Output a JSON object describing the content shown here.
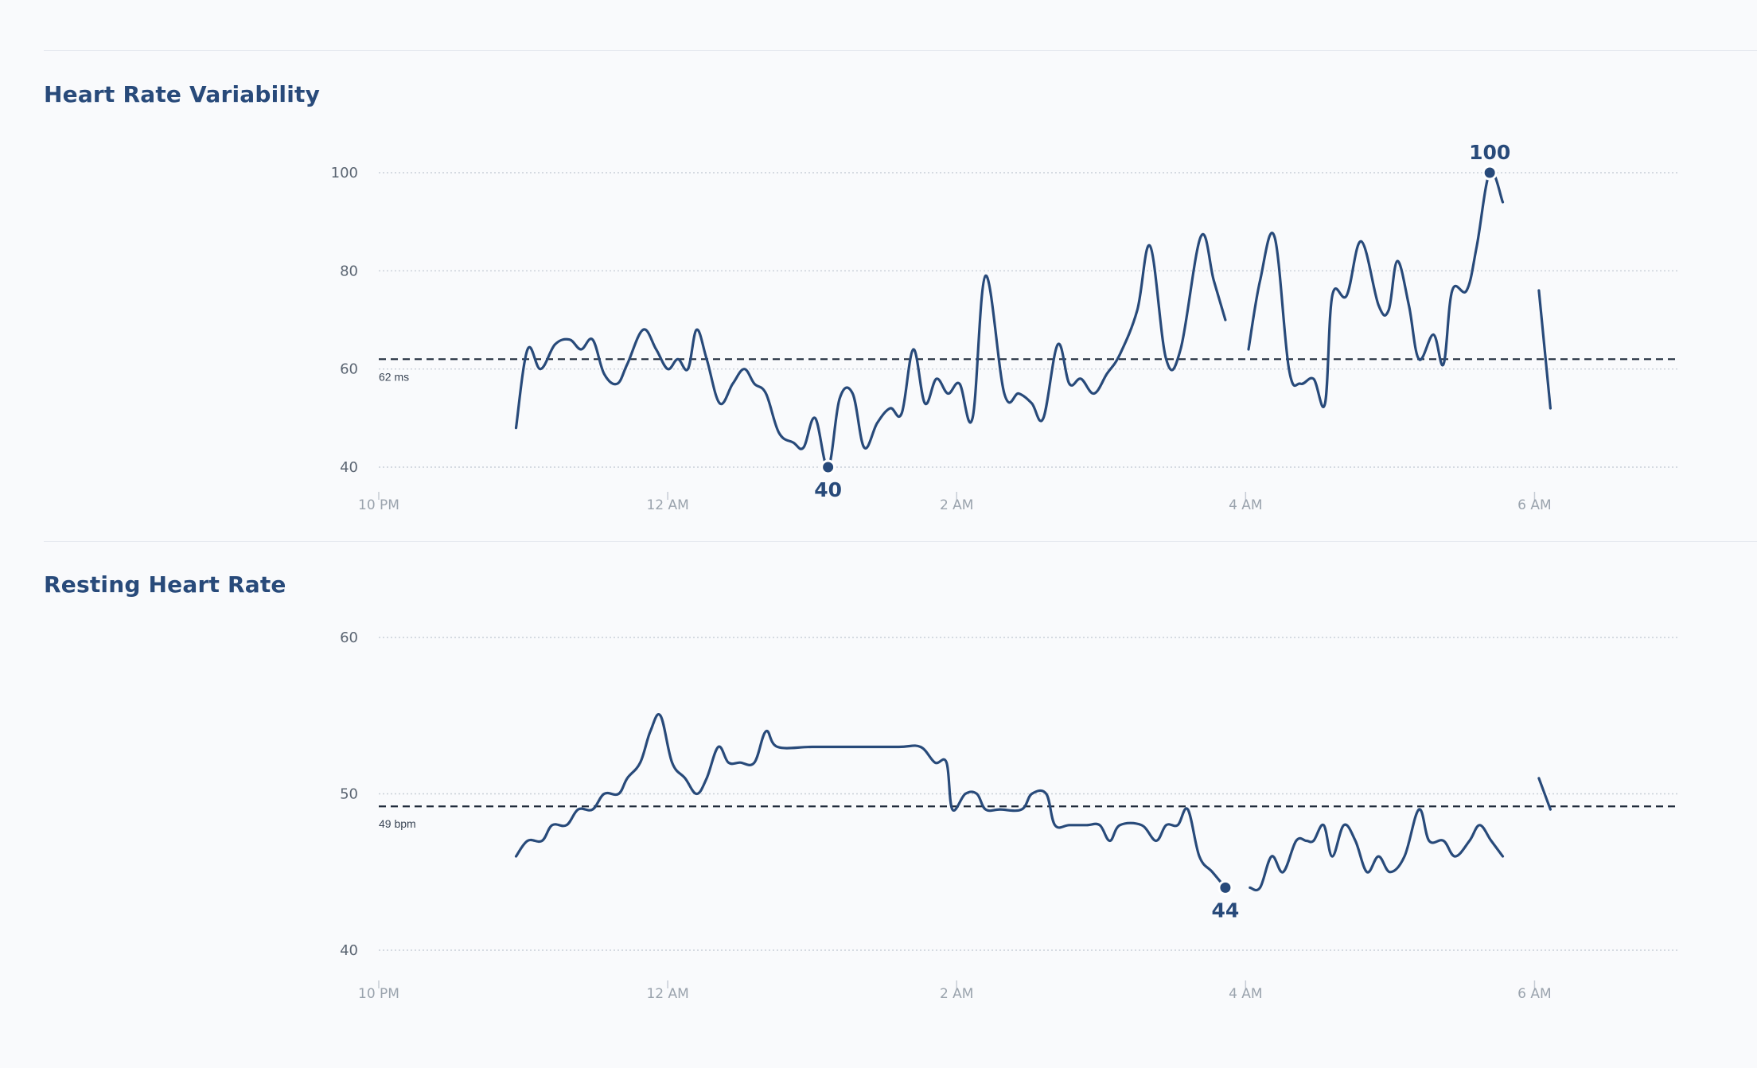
{
  "sections": [
    {
      "title": "Heart Rate Variability"
    },
    {
      "title": "Resting Heart Rate"
    }
  ],
  "chart_data": [
    {
      "type": "line",
      "title": "Heart Rate Variability",
      "xlabel": "",
      "ylabel": "",
      "xlim": [
        22.0,
        31.0
      ],
      "ylim": [
        40,
        100
      ],
      "yticks": [
        40,
        60,
        80,
        100
      ],
      "xtick_labels": [
        "10 PM",
        "12 AM",
        "2 AM",
        "4 AM",
        "6 AM"
      ],
      "xtick_values": [
        22,
        24,
        26,
        28,
        30
      ],
      "grid": true,
      "average": {
        "value": 62,
        "label": "62 ms"
      },
      "markers": [
        {
          "x": 25.11,
          "y": 40,
          "label": "40",
          "position": "below"
        },
        {
          "x": 29.69,
          "y": 100,
          "label": "100",
          "position": "above"
        }
      ],
      "series": [
        {
          "segments": [
            [
              [
                22.95,
                48
              ],
              [
                23.03,
                64
              ],
              [
                23.12,
                60
              ],
              [
                23.22,
                65
              ],
              [
                23.32,
                66
              ],
              [
                23.4,
                64
              ],
              [
                23.48,
                66
              ],
              [
                23.56,
                59
              ],
              [
                23.65,
                57
              ],
              [
                23.72,
                61
              ],
              [
                23.83,
                68
              ],
              [
                23.92,
                64
              ],
              [
                24.0,
                60
              ],
              [
                24.07,
                62
              ],
              [
                24.14,
                60
              ],
              [
                24.2,
                68
              ],
              [
                24.27,
                62
              ],
              [
                24.36,
                53
              ],
              [
                24.45,
                57
              ],
              [
                24.53,
                60
              ],
              [
                24.6,
                57
              ],
              [
                24.68,
                55
              ],
              [
                24.77,
                47
              ],
              [
                24.87,
                45
              ],
              [
                24.94,
                44
              ],
              [
                25.02,
                50
              ],
              [
                25.11,
                40
              ],
              [
                25.19,
                54
              ],
              [
                25.28,
                55
              ],
              [
                25.36,
                44
              ],
              [
                25.45,
                49
              ],
              [
                25.54,
                52
              ],
              [
                25.62,
                51
              ],
              [
                25.7,
                64
              ],
              [
                25.78,
                53
              ],
              [
                25.86,
                58
              ],
              [
                25.94,
                55
              ],
              [
                26.02,
                57
              ],
              [
                26.11,
                50
              ],
              [
                26.2,
                79
              ],
              [
                26.33,
                55
              ],
              [
                26.43,
                55
              ],
              [
                26.52,
                53
              ],
              [
                26.6,
                50
              ],
              [
                26.7,
                65
              ],
              [
                26.78,
                57
              ],
              [
                26.86,
                58
              ],
              [
                26.95,
                55
              ],
              [
                27.04,
                59
              ],
              [
                27.13,
                63
              ],
              [
                27.25,
                72
              ],
              [
                27.34,
                85
              ],
              [
                27.45,
                62
              ],
              [
                27.55,
                64
              ],
              [
                27.69,
                87
              ],
              [
                27.78,
                78
              ],
              [
                27.86,
                70
              ]
            ],
            [
              [
                28.02,
                64
              ],
              [
                28.1,
                78
              ],
              [
                28.2,
                87
              ],
              [
                28.3,
                60
              ],
              [
                28.38,
                57
              ],
              [
                28.47,
                58
              ],
              [
                28.55,
                53
              ],
              [
                28.6,
                75
              ],
              [
                28.7,
                75
              ],
              [
                28.8,
                86
              ],
              [
                28.92,
                73
              ],
              [
                28.99,
                72
              ],
              [
                29.05,
                82
              ],
              [
                29.13,
                73
              ],
              [
                29.2,
                62
              ],
              [
                29.3,
                67
              ],
              [
                29.37,
                61
              ],
              [
                29.43,
                76
              ],
              [
                29.53,
                76
              ],
              [
                29.6,
                85
              ],
              [
                29.69,
                100
              ],
              [
                29.78,
                94
              ]
            ],
            [
              [
                30.03,
                76
              ],
              [
                30.11,
                52
              ]
            ]
          ]
        }
      ]
    },
    {
      "type": "line",
      "title": "Resting Heart Rate",
      "xlabel": "",
      "ylabel": "",
      "xlim": [
        22.0,
        31.0
      ],
      "ylim": [
        40,
        60
      ],
      "yticks": [
        40,
        50,
        60
      ],
      "xtick_labels": [
        "10 PM",
        "12 AM",
        "2 AM",
        "4 AM",
        "6 AM"
      ],
      "xtick_values": [
        22,
        24,
        26,
        28,
        30
      ],
      "grid": true,
      "average": {
        "value": 49.2,
        "label": "49 bpm"
      },
      "markers": [
        {
          "x": 27.86,
          "y": 44,
          "label": "44",
          "position": "below"
        }
      ],
      "series": [
        {
          "segments": [
            [
              [
                22.95,
                46
              ],
              [
                23.03,
                47
              ],
              [
                23.13,
                47
              ],
              [
                23.2,
                48
              ],
              [
                23.3,
                48
              ],
              [
                23.38,
                49
              ],
              [
                23.48,
                49
              ],
              [
                23.56,
                50
              ],
              [
                23.66,
                50
              ],
              [
                23.72,
                51
              ],
              [
                23.81,
                52
              ],
              [
                23.88,
                54
              ],
              [
                23.95,
                55
              ],
              [
                24.03,
                52
              ],
              [
                24.12,
                51
              ],
              [
                24.2,
                50
              ],
              [
                24.27,
                51
              ],
              [
                24.35,
                53
              ],
              [
                24.42,
                52
              ],
              [
                24.5,
                52
              ],
              [
                24.6,
                52
              ],
              [
                24.68,
                54
              ],
              [
                24.76,
                53
              ],
              [
                25.0,
                53
              ],
              [
                25.3,
                53
              ],
              [
                25.6,
                53
              ],
              [
                25.75,
                53
              ],
              [
                25.85,
                52
              ],
              [
                25.93,
                52
              ],
              [
                25.97,
                49
              ],
              [
                26.06,
                50
              ],
              [
                26.14,
                50
              ],
              [
                26.2,
                49
              ],
              [
                26.3,
                49
              ],
              [
                26.45,
                49
              ],
              [
                26.52,
                50
              ],
              [
                26.62,
                50
              ],
              [
                26.68,
                48
              ],
              [
                26.78,
                48
              ],
              [
                26.9,
                48
              ],
              [
                26.99,
                48
              ],
              [
                27.06,
                47
              ],
              [
                27.13,
                48
              ],
              [
                27.28,
                48
              ],
              [
                27.38,
                47
              ],
              [
                27.45,
                48
              ],
              [
                27.53,
                48
              ],
              [
                27.6,
                49
              ],
              [
                27.68,
                46
              ],
              [
                27.77,
                45
              ],
              [
                27.86,
                44
              ]
            ],
            [
              [
                28.03,
                44
              ],
              [
                28.1,
                44
              ],
              [
                28.18,
                46
              ],
              [
                28.26,
                45
              ],
              [
                28.35,
                47
              ],
              [
                28.42,
                47
              ],
              [
                28.47,
                47
              ],
              [
                28.54,
                48
              ],
              [
                28.6,
                46
              ],
              [
                28.68,
                48
              ],
              [
                28.76,
                47
              ],
              [
                28.84,
                45
              ],
              [
                28.92,
                46
              ],
              [
                29.0,
                45
              ],
              [
                29.1,
                46
              ],
              [
                29.2,
                49
              ],
              [
                29.27,
                47
              ],
              [
                29.37,
                47
              ],
              [
                29.45,
                46
              ],
              [
                29.55,
                47
              ],
              [
                29.62,
                48
              ],
              [
                29.7,
                47
              ],
              [
                29.78,
                46
              ]
            ],
            [
              [
                30.03,
                51
              ],
              [
                30.11,
                49
              ]
            ]
          ]
        }
      ]
    }
  ]
}
